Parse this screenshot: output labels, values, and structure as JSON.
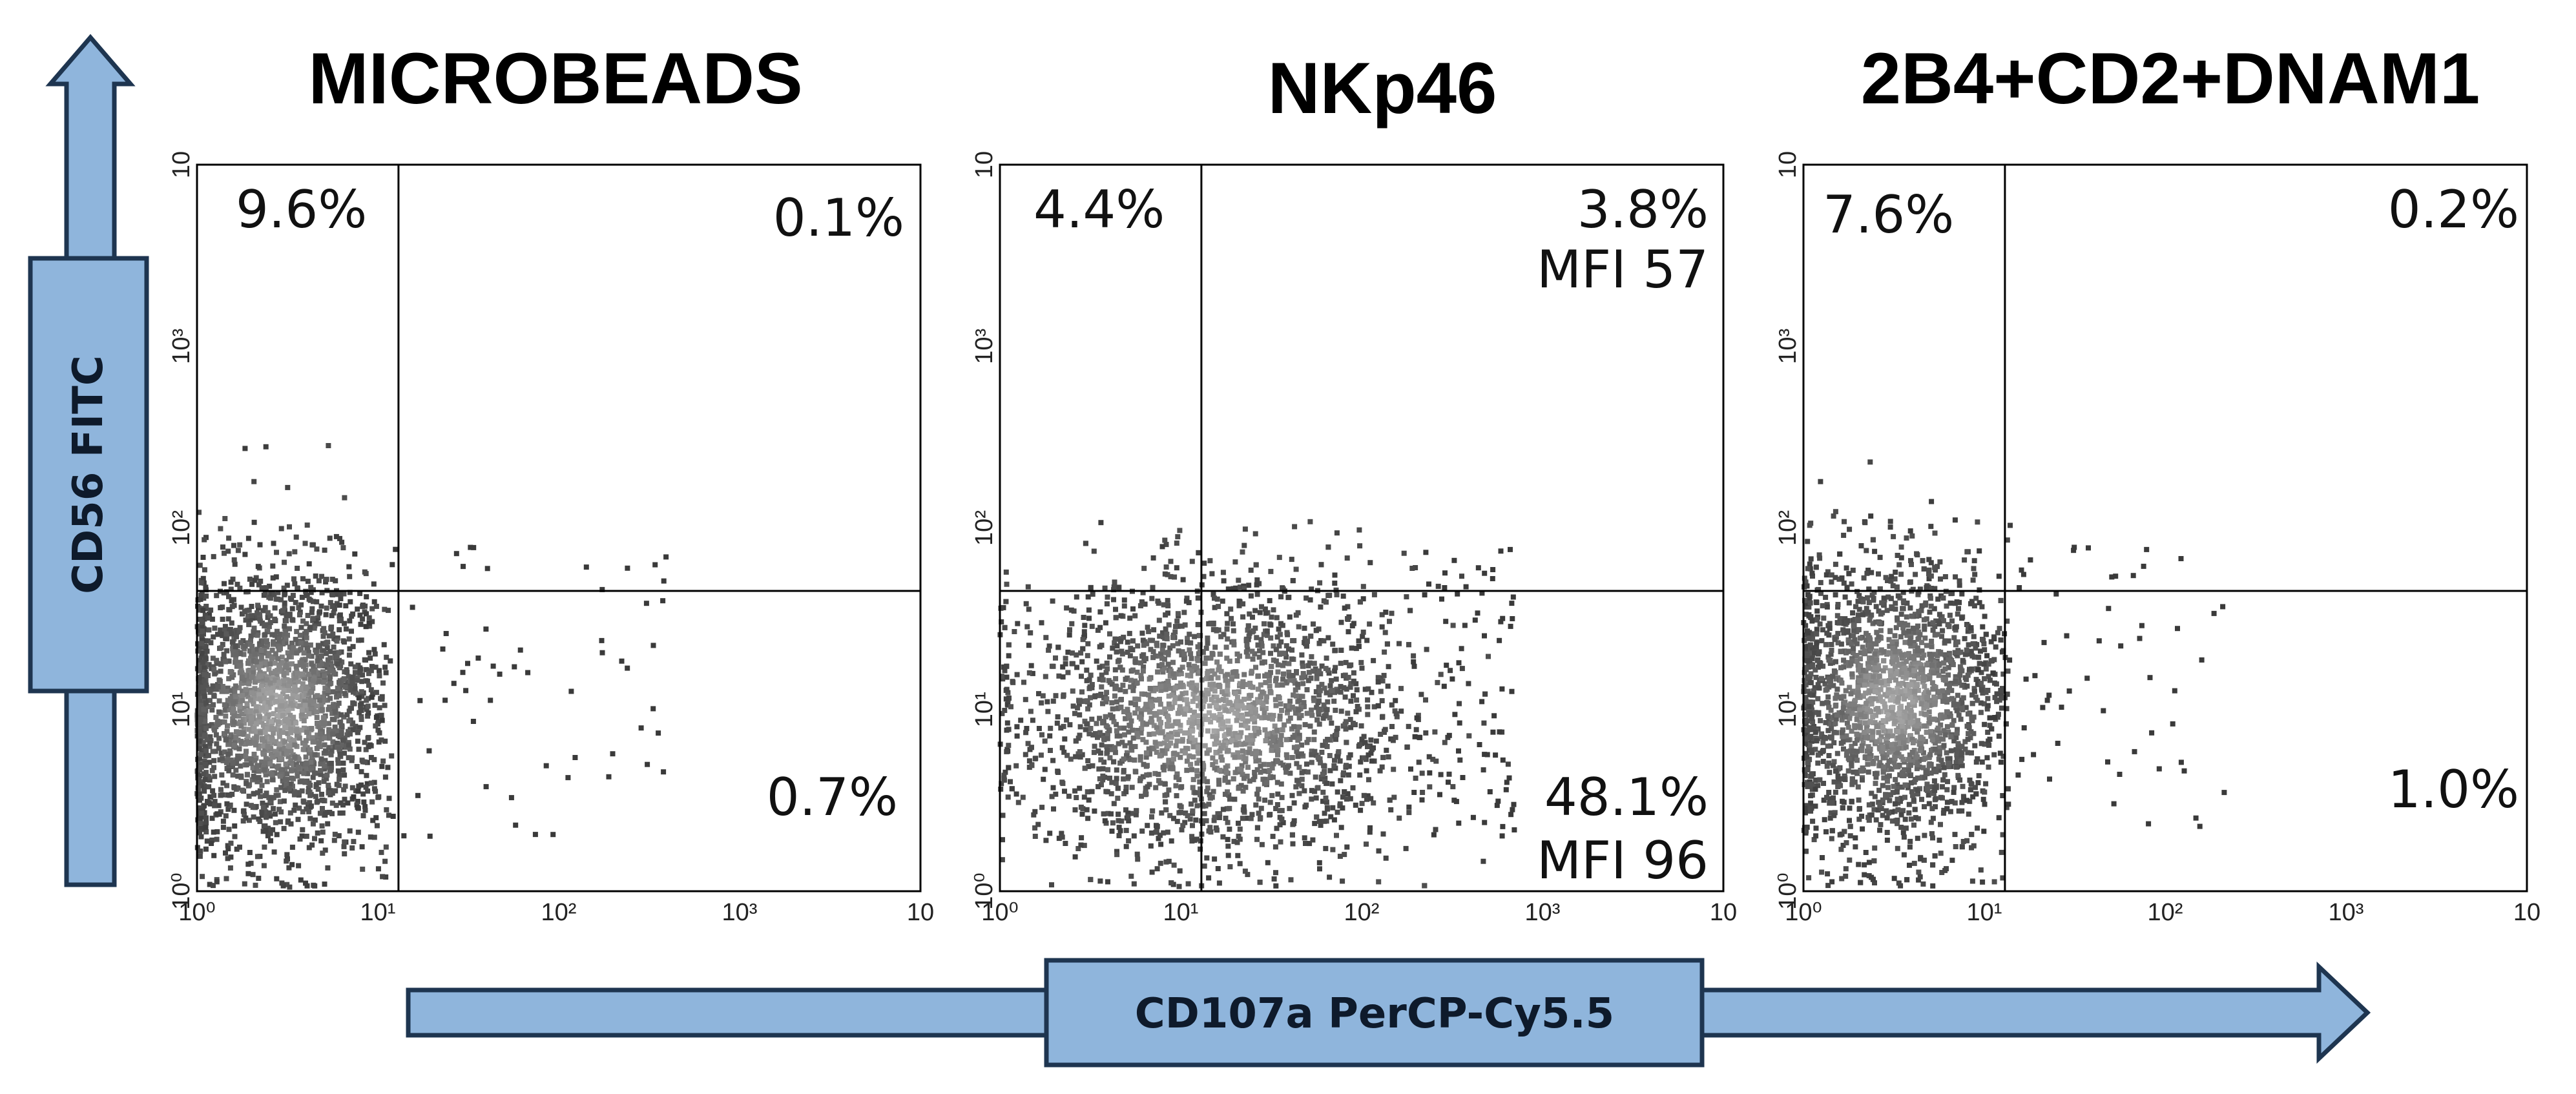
{
  "figure": {
    "y_axis_title": "CD56 FITC",
    "x_axis_title": "CD107a PerCP-Cy5.5",
    "colors": {
      "arrow_fill": "#8fb5dc",
      "arrow_stroke": "#1e3550",
      "point": "#3a3a3a",
      "gate": "#000000"
    }
  },
  "chart_data": [
    {
      "type": "scatter",
      "title": "MICROBEADS",
      "xlabel": "CD107a PerCP-Cy5.5",
      "ylabel": "CD56 FITC",
      "x_scale": "log",
      "y_scale": "log",
      "xlim": [
        1,
        10000
      ],
      "ylim": [
        1,
        10000
      ],
      "x_ticks": [
        "10⁰",
        "10¹",
        "10²",
        "10³",
        "10"
      ],
      "y_ticks": [
        "10⁰",
        "10¹",
        "10²",
        "10³",
        "10"
      ],
      "gate": {
        "x": 13,
        "y": 45
      },
      "quadrants": {
        "ul": "9.6%",
        "ur": "0.1%",
        "lr": "0.7%",
        "ur_mfi": "",
        "lr_mfi": ""
      },
      "population": {
        "main_center": [
          2.8,
          10
        ],
        "main_spread_x": 0.32,
        "main_spread_y": 0.38,
        "x_max": 12,
        "outlier_max": 400
      }
    },
    {
      "type": "scatter",
      "title": "NKp46",
      "xlabel": "CD107a PerCP-Cy5.5",
      "ylabel": "CD56 FITC",
      "x_scale": "log",
      "y_scale": "log",
      "xlim": [
        1,
        10000
      ],
      "ylim": [
        1,
        10000
      ],
      "x_ticks": [
        "10⁰",
        "10¹",
        "10²",
        "10³",
        "10"
      ],
      "y_ticks": [
        "10⁰",
        "10¹",
        "10²",
        "10³",
        "10"
      ],
      "gate": {
        "x": 13,
        "y": 45
      },
      "quadrants": {
        "ul": "4.4%",
        "ur": "3.8%",
        "lr": "48.1%",
        "ur_mfi": "MFI 57",
        "lr_mfi": "MFI 96"
      },
      "population": {
        "main_center": [
          15,
          9
        ],
        "main_spread_x": 0.55,
        "main_spread_y": 0.38,
        "x_max": 700,
        "outlier_max": 700
      }
    },
    {
      "type": "scatter",
      "title": "2B4+CD2+DNAM1",
      "xlabel": "CD107a PerCP-Cy5.5",
      "ylabel": "CD56 FITC",
      "x_scale": "log",
      "y_scale": "log",
      "xlim": [
        1,
        10000
      ],
      "ylim": [
        1,
        10000
      ],
      "x_ticks": [
        "10⁰",
        "10¹",
        "10²",
        "10³",
        "10"
      ],
      "y_ticks": [
        "10⁰",
        "10¹",
        "10²",
        "10³",
        "10"
      ],
      "gate": {
        "x": 13,
        "y": 45
      },
      "quadrants": {
        "ul": "7.6%",
        "ur": "0.2%",
        "lr": "1.0%",
        "ur_mfi": "",
        "lr_mfi": ""
      },
      "population": {
        "main_center": [
          3.2,
          11
        ],
        "main_spread_x": 0.33,
        "main_spread_y": 0.4,
        "x_max": 14,
        "outlier_max": 220
      }
    }
  ]
}
